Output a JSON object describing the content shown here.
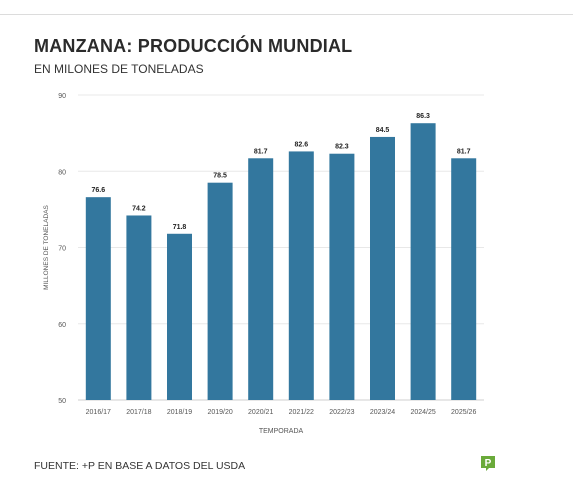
{
  "header": {
    "title": "MANZANA: PRODUCCIÓN MUNDIAL",
    "subtitle": "EN MILONES DE TONELADAS"
  },
  "footer": {
    "source": "FUENTE: +P EN BASE A DATOS DEL USDA",
    "logo_text": "P"
  },
  "colors": {
    "bar": "#33779e",
    "logo": "#6aaa3a",
    "grid": "#e8e8e8",
    "axis_text": "#555555",
    "label_text": "#222222"
  },
  "chart_data": {
    "type": "bar",
    "categories": [
      "2016/17",
      "2017/18",
      "2018/19",
      "2019/20",
      "2020/21",
      "2021/22",
      "2022/23",
      "2023/24",
      "2024/25",
      "2025/26"
    ],
    "values": [
      76.6,
      74.2,
      71.8,
      78.5,
      81.7,
      82.6,
      82.3,
      84.5,
      86.3,
      81.7
    ],
    "value_labels": [
      "76.6",
      "74.2",
      "71.8",
      "78.5",
      "81.7",
      "82.6",
      "82.3",
      "84.5",
      "86.3",
      "81.7"
    ],
    "title": "MANZANA: PRODUCCIÓN MUNDIAL",
    "subtitle": "EN MILONES DE TONELADAS",
    "xlabel": "TEMPORADA",
    "ylabel": "MILLONES DE TONELADAS",
    "ylim": [
      50,
      90
    ],
    "yticks": [
      50,
      60,
      70,
      80,
      90
    ],
    "ytick_labels": [
      "50",
      "60",
      "70",
      "80",
      "90"
    ],
    "grid": true,
    "legend": "none"
  }
}
